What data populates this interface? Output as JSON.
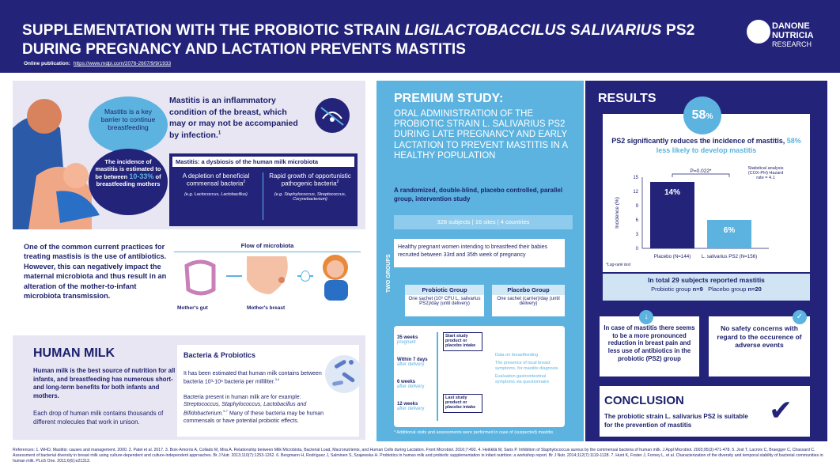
{
  "header": {
    "title_line1_a": "SUPPLEMENTATION WITH THE PROBIOTIC STRAIN ",
    "title_line1_b": "LIGILACTOBACCILUS SALIVARIUS",
    "title_line1_c": " PS2",
    "title_line2": "DURING PREGNANCY AND LACTATION PREVENTS MASTITIS",
    "publication_label": "Online publication:",
    "publication_url": "https://www.mdpi.com/2076-2607/9/9/1933",
    "logo_line1": "DANONE",
    "logo_line2": "NUTRICIA",
    "logo_line3": "RESEARCH"
  },
  "mastitis": {
    "bubble_key": "Mastitis is a key barrier to continue breastfeeding",
    "bubble_incidence_a": "The incidence of mastitis is estimated to be between",
    "bubble_incidence_pct": "10-33%",
    "bubble_incidence_b": "of breastfeeding mothers",
    "definition": "Mastitis is an inflammatory condition of the breast, which may or may not be accompanied by infection.",
    "definition_sup": "1",
    "dysbiosis_title": "Mastitis: a dysbiosis of the human milk microbiota",
    "depletion": "A depletion of beneficial commensal bacteria",
    "depletion_sup": "2",
    "depletion_eg": "(e.g. Lactococcus, Lactobacillus)",
    "growth": "Rapid growth of opportunistic pathogenic bacteria",
    "growth_sup": "2",
    "growth_eg": "(e.g. Staphylococcus, Streptococcus, Corynebacterium)"
  },
  "flow": {
    "text": "One of the common current practices for treating mastisis is the use of antibiotics. However, this can negatively impact the maternal microbiota and thus result in an alteration of the mother-to-infant microbiota transmission.",
    "title": "Flow of microbiota",
    "gut_label": "Mother's gut",
    "breast_label": "Mother's breast"
  },
  "human_milk": {
    "title": "HUMAN MILK",
    "intro_bold": "Human milk is the best source of nutrition for all infants, and breastfeeding has numerous short- and long-term benefits for both infants and mothers.",
    "intro": "Each drop of human milk contains thousands of different molecules that work in unison.",
    "bacteria_title": "Bacteria & Probiotics",
    "bacteria_p1": "It has been estimated that human milk contains between bacteria 10³-10⁶ bacteria per milliliter.",
    "bacteria_p1_sup": "3,4",
    "bacteria_p2_a": "Bacteria present in human milk are for example:",
    "bacteria_p2_b": "Streptococcus, Staphylococcus, Lactobacillus and Bifidobacterium.",
    "bacteria_p2_sup": "5-7",
    "bacteria_p2_c": "Many of these bacteria may be human commensals or have potential probiotic effects."
  },
  "premium": {
    "title": "PREMIUM STUDY:",
    "subtitle": "ORAL ADMINISTRATION OF THE PROBIOTIC STRAIN L. SALIVARIUS PS2 DURING LATE PREGNANCY AND EARLY LACTATION TO PREVENT MASTITIS IN A HEALTHY POPULATION",
    "design": "A randomized, double-blind, placebo controlled, parallel group, intervention study",
    "counts": "328 subjects | 16 sites | 4 countries",
    "population": "Healthy pregnant women intending to breastfeed their babies recruited between 33rd and 35th week of pregnancy",
    "two_groups": "TWO GROUPS",
    "probiotic_group": "Probiotic Group",
    "probiotic_desc": "One sachet (10⁹ CFU L. salivarius PS2)/day (until delivery)",
    "placebo_group": "Placebo Group",
    "placebo_desc": "One sachet (carrier)/day (until delivery)",
    "timeline": [
      {
        "when": "35 weeks",
        "sub": "pregnant"
      },
      {
        "when": "Within 7 days",
        "sub": "after delivery"
      },
      {
        "when": "6 weeks",
        "sub": "after delivery"
      },
      {
        "when": "12 weeks",
        "sub": "after delivery"
      }
    ],
    "start_box": "Start study product or placebo intake",
    "last_box": "Last study product or placebo intake",
    "data_items": [
      "Data on breastfeeding",
      "The presence of local breast symptoms, for mastitis diagnosis",
      "Evaluation gastrointestinal symptoms via questionnaire"
    ],
    "footnote": "* Additional visits and assessments were performed in case of (suspected) mastitis"
  },
  "results": {
    "title": "RESULTS",
    "pct": "58",
    "pct_unit": "%",
    "headline_a": "PS2 significantly reduces the incidence of mastitis,",
    "headline_b": "58% less likely to develop mastitis",
    "pvalue": "P=0.022*",
    "hazard": "Statistical analysis (COX-PH) Hazard rate = 4.1",
    "logrank": "*Log-rank test",
    "total": "In total 29 subjects reported mastitis",
    "probiotic_n_label": "Probiotic group",
    "probiotic_n": "n=9",
    "placebo_n_label": "Placebo group",
    "placebo_n": "n=20",
    "info1": "In case of mastitis there seems to be a more pronounced reduction in breast pain and less use of antibiotics in the probiotic (PS2) group",
    "info2": "No safety concerns with regard to the occurence of adverse events",
    "conclusion_title": "CONCLUSION",
    "conclusion_text": "The probiotic strain L. salivarius PS2 is suitable for the prevention of mastitis"
  },
  "chart_data": {
    "type": "bar",
    "categories": [
      "Placebo (N=144)",
      "L. salivarius PS2 (N=156)"
    ],
    "values": [
      14,
      6
    ],
    "value_labels": [
      "14%",
      "6%"
    ],
    "ylabel": "Incidence (%)",
    "ylim": [
      0,
      15
    ],
    "yticks": [
      0,
      3,
      6,
      9,
      12,
      15
    ],
    "colors": [
      "#24237a",
      "#5cb3df"
    ]
  },
  "references": "References: 1. WHO, Mastitis: causes and management, 2000. 2. Patel et al. 2017. 3. Boix-Amorós A, Collado M, Mira A. Relationship between Milk Microbiota, Bacterial Load, Macronutrients, and Human Cells during Lactation. Front Microbiol. 2016;7:492. 4. Heikkilä M, Saris P. Inhibition of Staphylococcus aureus by the commensal bacteria of human milk. J Appl Microbiol. 2003;95(3):471-478. 5. Jost T, Lacroix C, Braegger C, Chassard C. Assessment of bacterial diversity in breast milk using culture-dependent and culture-independent approaches. Br J Nutr. 2013;110(7):1253-1262. 6. Bergmann H, Rodríguez J, Salminen S, Szajewska H. Probiotics in human milk and probiotic supplementation in infant nutrition: a workshop report. Br J Nutr. 2014;112(7):1119-1128. 7. Hunt K, Foster J, Forney L, et al. Characterization of the diversity and temporal stability of bacterial communities in human milk. PLoS One. 2011;6(6):e21313."
}
